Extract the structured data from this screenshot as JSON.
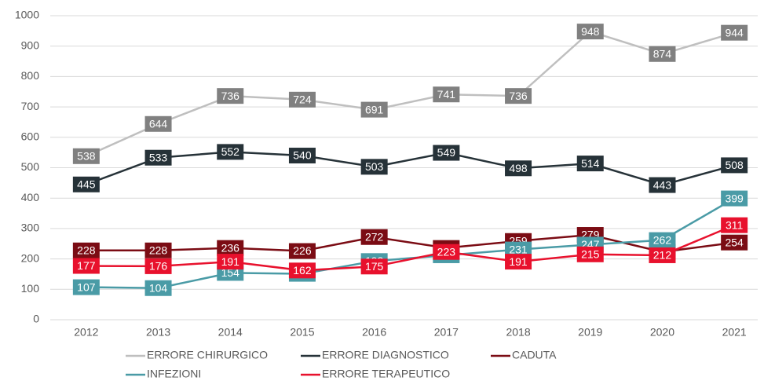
{
  "chart_data": {
    "type": "line",
    "categories": [
      "2012",
      "2013",
      "2014",
      "2015",
      "2016",
      "2017",
      "2018",
      "2019",
      "2020",
      "2021"
    ],
    "series": [
      {
        "name": "ERRORE CHIRURGICO",
        "color": "#bfbfbf",
        "label_color": "#808080",
        "values": [
          538,
          644,
          736,
          724,
          691,
          741,
          736,
          948,
          874,
          944
        ]
      },
      {
        "name": "ERRORE DIAGNOSTICO",
        "color": "#263238",
        "label_color": "#263238",
        "values": [
          445,
          533,
          552,
          540,
          503,
          549,
          498,
          514,
          443,
          508
        ]
      },
      {
        "name": "CADUTA",
        "color": "#7b0c14",
        "label_color": "#7b0c14",
        "values": [
          228,
          228,
          236,
          226,
          272,
          236,
          259,
          279,
          223,
          254
        ]
      },
      {
        "name": "INFEZIONI",
        "color": "#4a9ba6",
        "label_color": "#4a9ba6",
        "values": [
          107,
          104,
          154,
          151,
          193,
          212,
          231,
          247,
          262,
          399
        ]
      },
      {
        "name": "ERRORE TERAPEUTICO",
        "color": "#e8112d",
        "label_color": "#e8112d",
        "values": [
          177,
          176,
          191,
          162,
          175,
          223,
          191,
          215,
          212,
          311
        ]
      }
    ],
    "ylim": [
      0,
      1000
    ],
    "yticks": [
      0,
      100,
      200,
      300,
      400,
      500,
      600,
      700,
      800,
      900,
      1000
    ],
    "grid": true,
    "legend": "bottom"
  }
}
